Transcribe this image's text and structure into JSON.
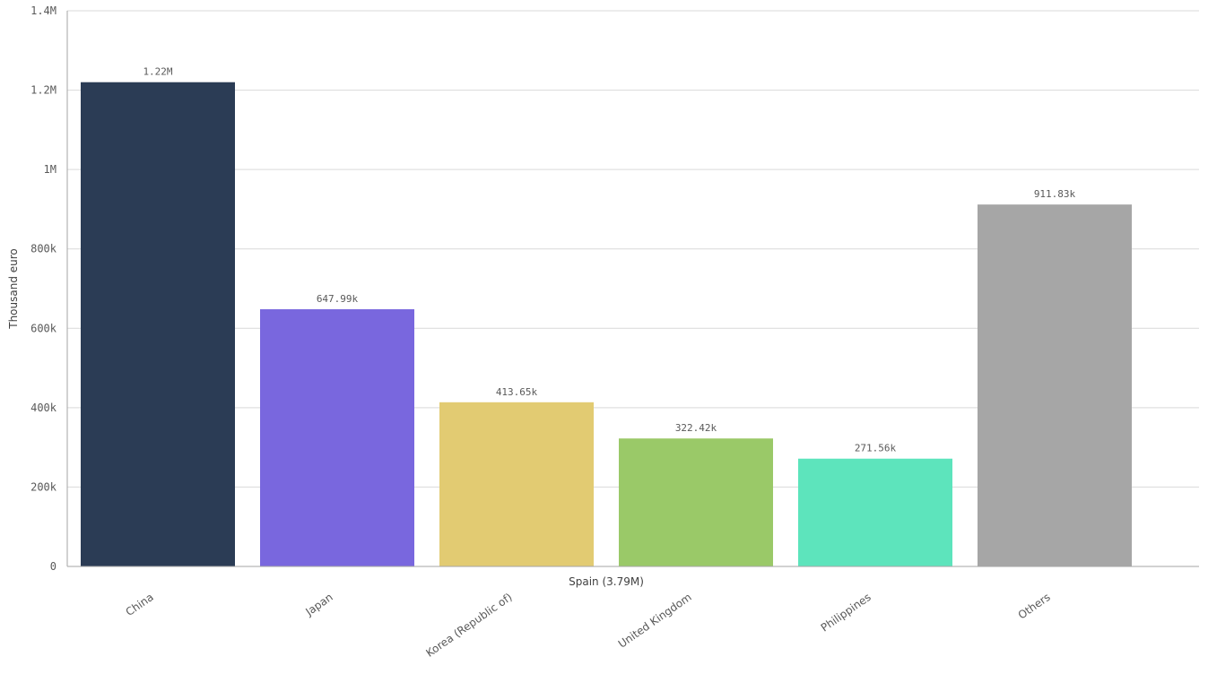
{
  "chart_data": {
    "type": "bar",
    "title": "",
    "ylabel": "Thousand euro",
    "xlabel": "Spain (3.79M)",
    "ylim": [
      0,
      1400000
    ],
    "yticks": [
      {
        "value": 0,
        "label": "0"
      },
      {
        "value": 200000,
        "label": "200k"
      },
      {
        "value": 400000,
        "label": "400k"
      },
      {
        "value": 600000,
        "label": "600k"
      },
      {
        "value": 800000,
        "label": "800k"
      },
      {
        "value": 1000000,
        "label": "1M"
      },
      {
        "value": 1200000,
        "label": "1.2M"
      },
      {
        "value": 1400000,
        "label": "1.4M"
      }
    ],
    "grid": true,
    "legend": "none",
    "categories": [
      "China",
      "Japan",
      "Korea (Republic of)",
      "United Kingdom",
      "Philippines",
      "Others"
    ],
    "values": [
      1220000,
      647990,
      413650,
      322420,
      271560,
      911830
    ],
    "data_labels": [
      "1.22M",
      "647.99k",
      "413.65k",
      "322.42k",
      "271.56k",
      "911.83k"
    ],
    "colors": [
      "#2b3c55",
      "#7967de",
      "#e2cb72",
      "#9ac968",
      "#5de4bc",
      "#a6a6a6"
    ]
  }
}
